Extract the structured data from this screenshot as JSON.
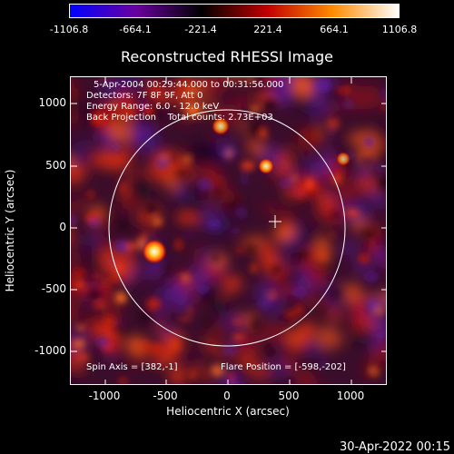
{
  "colorbar": {
    "labels": [
      "-1106.8",
      "-664.1",
      "-221.4",
      "221.4",
      "664.1",
      "1106.8"
    ],
    "colors": [
      "#0000ff",
      "#6a00a0",
      "#000000",
      "#c00000",
      "#ff8c00",
      "#ffffff"
    ]
  },
  "title": "Reconstructed RHESSI Image",
  "info": {
    "line1": "5-Apr-2004 00:29:44.000 to 00:31:56.000",
    "line2": "Detectors: 7F 8F 9F, Att 0",
    "line3": "Energy Range: 6.0 - 12.0 keV",
    "line4": "Back Projection    Total counts: 2.73E+03",
    "spin_axis": "Spin Axis = [382,-1]",
    "flare_position": "Flare Position = [-598,-202]"
  },
  "axes": {
    "ylabel": "Heliocentric Y (arcsec)",
    "xlabel": "Heliocentric X (arcsec)",
    "yticks": [
      "1000",
      "500",
      "0",
      "-500",
      "-1000"
    ],
    "xticks": [
      "-1000",
      "-500",
      "0",
      "500",
      "1000"
    ]
  },
  "timestamp": "30-Apr-2022 00:15"
}
